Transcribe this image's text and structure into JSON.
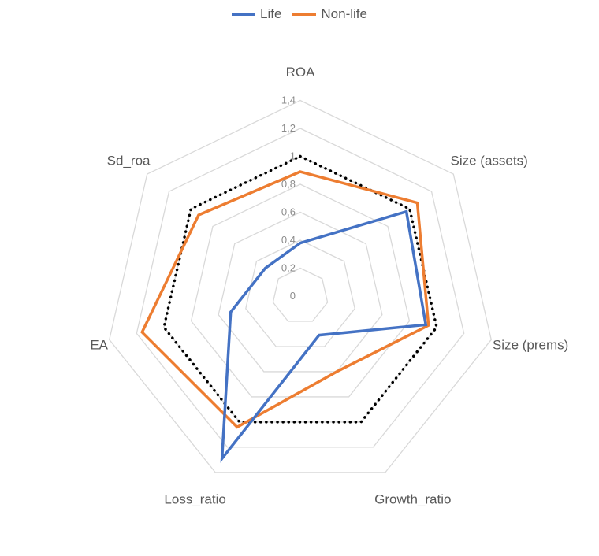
{
  "chart_data": {
    "type": "radar",
    "categories": [
      "ROA",
      "Size (assets)",
      "Size (prems)",
      "Growth_ratio",
      "Loss_ratio",
      "EA",
      "Sd_roa"
    ],
    "rlim": [
      0,
      1.4
    ],
    "ticks": [
      "0",
      "0,2",
      "0,4",
      "0,6",
      "0,8",
      "1",
      "1,2",
      "1,4"
    ],
    "tick_values": [
      0,
      0.2,
      0.4,
      0.6,
      0.8,
      1.0,
      1.2,
      1.4
    ],
    "legend_position": "top",
    "grid": true,
    "series": [
      {
        "name": "Life",
        "color": "#4472C4",
        "style": "solid",
        "values": [
          0.38,
          0.97,
          0.92,
          0.31,
          1.29,
          0.51,
          0.32
        ]
      },
      {
        "name": "Non-life",
        "color": "#ED7D31",
        "style": "solid",
        "values": [
          0.89,
          1.07,
          0.94,
          0.6,
          1.04,
          1.16,
          0.93
        ]
      }
    ],
    "reference": {
      "color": "#000000",
      "style": "dotted",
      "values": [
        1,
        1,
        1,
        1,
        1,
        1,
        1
      ]
    }
  }
}
